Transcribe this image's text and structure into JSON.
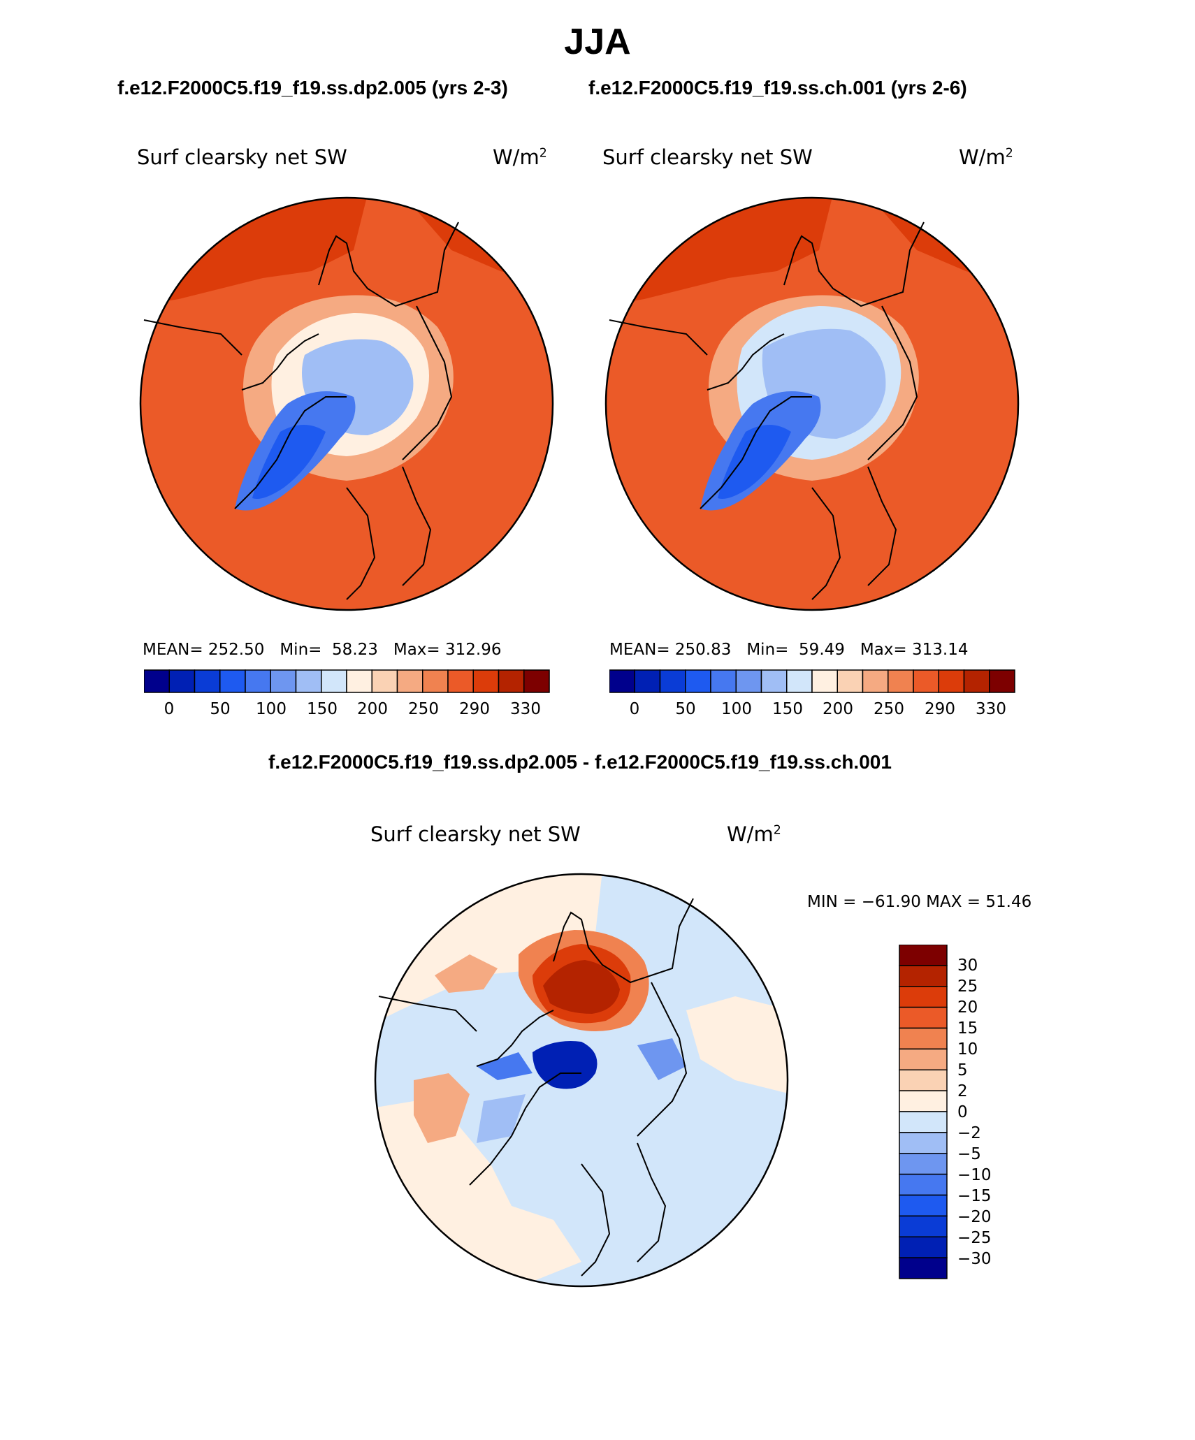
{
  "header": {
    "season": "JJA",
    "case_a_title": "f.e12.F2000C5.f19_f19.ss.dp2.005 (yrs 2-3)",
    "case_b_title": "f.e12.F2000C5.f19_f19.ss.ch.001 (yrs 2-6)",
    "diff_title": "f.e12.F2000C5.f19_f19.ss.dp2.005 - f.e12.F2000C5.f19_f19.ss.ch.001"
  },
  "panels": [
    {
      "variable": "Surf clearsky net SW",
      "units_base": "W/m",
      "units_exp": "2",
      "mean_label": "MEAN=",
      "mean": "252.50",
      "min_label": "Min=",
      "min": "58.23",
      "max_label": "Max=",
      "max": "312.96"
    },
    {
      "variable": "Surf clearsky net SW",
      "units_base": "W/m",
      "units_exp": "2",
      "mean_label": "MEAN=",
      "mean": "250.83",
      "min_label": "Min=",
      "min": "59.49",
      "max_label": "Max=",
      "max": "313.14"
    }
  ],
  "diff_panel": {
    "variable": "Surf clearsky net SW",
    "units_base": "W/m",
    "units_exp": "2",
    "minmax_text": "MIN = −61.90 MAX =  51.46"
  },
  "colorbar_abs": {
    "colors": [
      "#00008c",
      "#0020b4",
      "#0a3cd6",
      "#1e5af0",
      "#4678f0",
      "#6e96f0",
      "#a0bef5",
      "#d2e6fa",
      "#fff0e1",
      "#fad2b4",
      "#f5aa82",
      "#f08250",
      "#eb5a28",
      "#dc3c0a",
      "#b42300",
      "#7d0000"
    ],
    "labels": [
      "0",
      "50",
      "100",
      "150",
      "200",
      "250",
      "290",
      "330"
    ]
  },
  "colorbar_diff": {
    "colors": [
      "#7d0000",
      "#b42300",
      "#dc3c0a",
      "#eb5a28",
      "#f08250",
      "#f5aa82",
      "#fad2b4",
      "#fff0e1",
      "#d2e6fa",
      "#a0bef5",
      "#6e96f0",
      "#4678f0",
      "#1e5af0",
      "#0a3cd6",
      "#0020b4",
      "#00008c"
    ],
    "labels": [
      "30",
      "25",
      "20",
      "15",
      "10",
      "5",
      "2",
      "0",
      "−2",
      "−5",
      "−10",
      "−15",
      "−20",
      "−25",
      "−30"
    ]
  },
  "colors": {
    "ocean_abs": "#eb5a28",
    "ocean_diff": "#d2e6fa",
    "coastline": "#000000"
  }
}
